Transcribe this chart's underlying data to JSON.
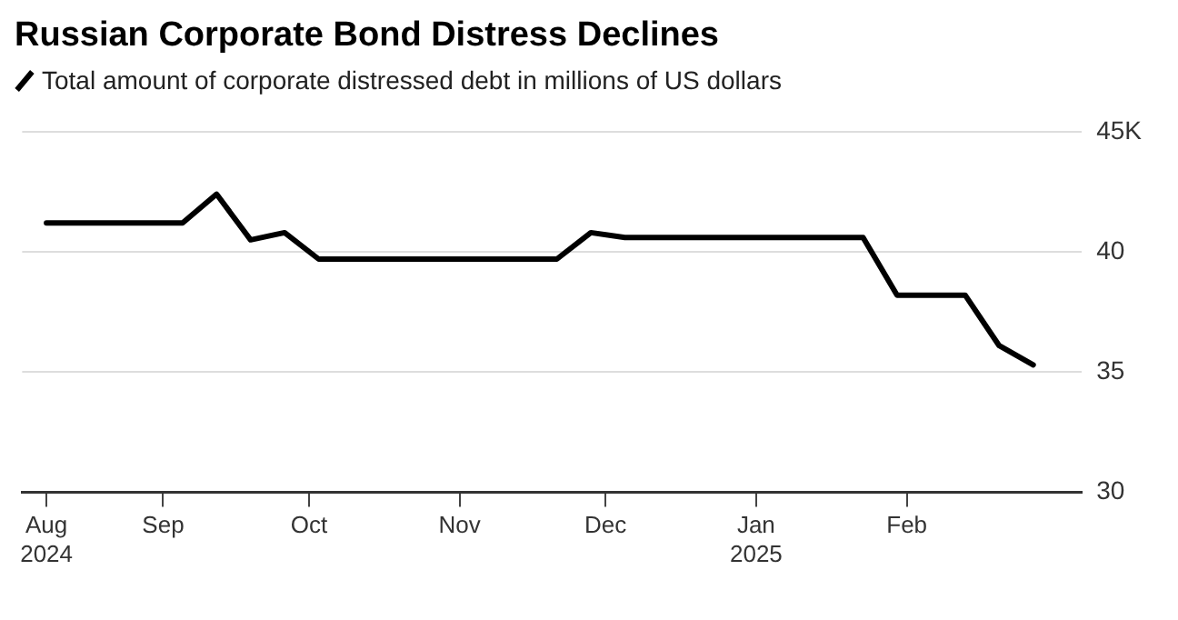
{
  "chart_data": {
    "type": "line",
    "title": "Russian Corporate Bond Distress Declines",
    "x": [
      "2024-08-08",
      "2024-09-05",
      "2024-09-12",
      "2024-09-19",
      "2024-09-26",
      "2024-10-03",
      "2024-11-21",
      "2024-11-28",
      "2024-12-05",
      "2025-01-23",
      "2025-01-30",
      "2025-02-13",
      "2025-02-20",
      "2025-02-27"
    ],
    "series": [
      {
        "name": "Total amount of corporate distressed debt in millions of US dollars",
        "color": "#000000",
        "values": [
          41.2,
          41.2,
          42.4,
          40.5,
          40.8,
          39.7,
          39.7,
          40.8,
          40.6,
          40.6,
          38.2,
          38.2,
          36.1,
          35.3
        ]
      }
    ],
    "xlim": [
      "2024-08-03",
      "2025-03-09"
    ],
    "xticks": [
      {
        "value": "2024-08-08",
        "label": "Aug 2024"
      },
      {
        "value": "2024-09-01",
        "label": "Sep"
      },
      {
        "value": "2024-10-01",
        "label": "Oct"
      },
      {
        "value": "2024-11-01",
        "label": "Nov"
      },
      {
        "value": "2024-12-01",
        "label": "Dec"
      },
      {
        "value": "2025-01-01",
        "label": "Jan 2025"
      },
      {
        "value": "2025-02-01",
        "label": "Feb"
      }
    ],
    "ylim": [
      30,
      45
    ],
    "yticks": [
      30,
      35,
      40,
      {
        "value": 45,
        "label": "45K"
      }
    ],
    "grid": "y",
    "legend": "top left",
    "marker": "none",
    "line_style": "solid"
  }
}
